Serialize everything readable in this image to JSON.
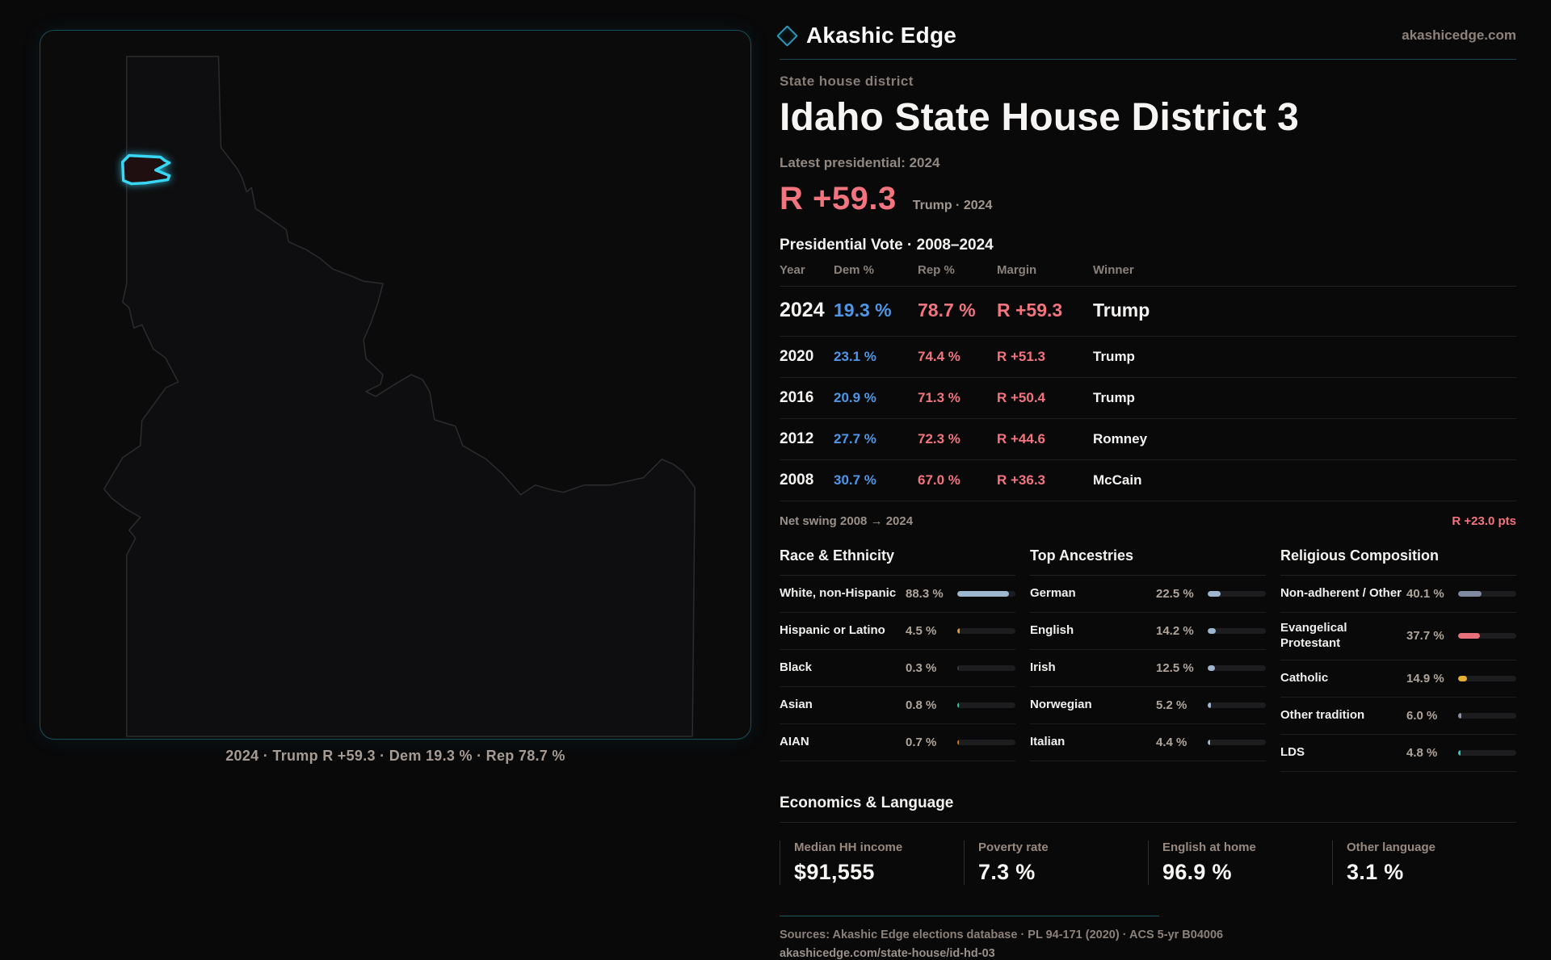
{
  "brand": {
    "name": "Akashic Edge",
    "domain": "akashicedge.com"
  },
  "page": {
    "kicker": "State house district",
    "title": "Idaho State House District 3",
    "latest_label": "Latest presidential: 2024",
    "headline_margin": "R +59.3",
    "headline_sub": "Trump · 2024"
  },
  "map": {
    "state": "Idaho",
    "caption": "2024 · Trump R +59.3 · Dem 19.3 % · Rep 78.7 %",
    "district_color": "#38d7f5"
  },
  "vote_table": {
    "title": "Presidential Vote · 2008–2024",
    "columns": {
      "year": "Year",
      "dem": "Dem %",
      "rep": "Rep %",
      "margin": "Margin",
      "winner": "Winner"
    },
    "rows": [
      {
        "year": "2024",
        "dem": "19.3 %",
        "rep": "78.7 %",
        "margin": "R +59.3",
        "winner": "Trump"
      },
      {
        "year": "2020",
        "dem": "23.1 %",
        "rep": "74.4 %",
        "margin": "R +51.3",
        "winner": "Trump"
      },
      {
        "year": "2016",
        "dem": "20.9 %",
        "rep": "71.3 %",
        "margin": "R +50.4",
        "winner": "Trump"
      },
      {
        "year": "2012",
        "dem": "27.7 %",
        "rep": "72.3 %",
        "margin": "R +44.6",
        "winner": "Romney"
      },
      {
        "year": "2008",
        "dem": "30.7 %",
        "rep": "67.0 %",
        "margin": "R +36.3",
        "winner": "McCain"
      }
    ],
    "net_swing_label": "Net swing 2008 → 2024",
    "net_swing_value": "R +23.0 pts"
  },
  "chart_data": {
    "type": "bar",
    "groups": [
      {
        "title": "Race & Ethnicity",
        "categories": [
          "White, non-Hispanic",
          "Hispanic or Latino",
          "Black",
          "Asian",
          "AIAN"
        ],
        "values": [
          88.3,
          4.5,
          0.3,
          0.8,
          0.7
        ]
      },
      {
        "title": "Top Ancestries",
        "categories": [
          "German",
          "English",
          "Irish",
          "Norwegian",
          "Italian"
        ],
        "values": [
          22.5,
          14.2,
          12.5,
          5.2,
          4.4
        ]
      },
      {
        "title": "Religious Composition",
        "categories": [
          "Non-adherent / Other",
          "Evangelical Protestant",
          "Catholic",
          "Other tradition",
          "LDS"
        ],
        "values": [
          40.1,
          37.7,
          14.9,
          6.0,
          4.8
        ]
      }
    ]
  },
  "demographics": [
    {
      "title": "Race & Ethnicity",
      "rows": [
        {
          "label": "White, non-Hispanic",
          "value": "88.3 %",
          "pct": 88.3,
          "color": "#9fb6cf"
        },
        {
          "label": "Hispanic or Latino",
          "value": "4.5 %",
          "pct": 4.5,
          "color": "#e09a2e"
        },
        {
          "label": "Black",
          "value": "0.3 %",
          "pct": 0.3,
          "color": "#3a3a3e"
        },
        {
          "label": "Asian",
          "value": "0.8 %",
          "pct": 0.8,
          "color": "#2ec9a0"
        },
        {
          "label": "AIAN",
          "value": "0.7 %",
          "pct": 0.7,
          "color": "#c87a20"
        }
      ]
    },
    {
      "title": "Top Ancestries",
      "rows": [
        {
          "label": "German",
          "value": "22.5 %",
          "pct": 22.5,
          "color": "#9fb6cf"
        },
        {
          "label": "English",
          "value": "14.2 %",
          "pct": 14.2,
          "color": "#9fb6cf"
        },
        {
          "label": "Irish",
          "value": "12.5 %",
          "pct": 12.5,
          "color": "#9fb6cf"
        },
        {
          "label": "Norwegian",
          "value": "5.2 %",
          "pct": 5.2,
          "color": "#9fb6cf"
        },
        {
          "label": "Italian",
          "value": "4.4 %",
          "pct": 4.4,
          "color": "#9fb6cf"
        }
      ]
    },
    {
      "title": "Religious Composition",
      "rows": [
        {
          "label": "Non-adherent / Other",
          "value": "40.1 %",
          "pct": 40.1,
          "color": "#7e8aa0"
        },
        {
          "label": "Evangelical Protestant",
          "value": "37.7 %",
          "pct": 37.7,
          "color": "#e7707a"
        },
        {
          "label": "Catholic",
          "value": "14.9 %",
          "pct": 14.9,
          "color": "#e5ae35"
        },
        {
          "label": "Other tradition",
          "value": "6.0 %",
          "pct": 6.0,
          "color": "#8a93a5"
        },
        {
          "label": "LDS",
          "value": "4.8 %",
          "pct": 4.8,
          "color": "#2cc9b8"
        }
      ]
    }
  ],
  "economics": {
    "title": "Economics & Language",
    "stats": [
      {
        "label": "Median HH income",
        "value": "$91,555"
      },
      {
        "label": "Poverty rate",
        "value": "7.3 %"
      },
      {
        "label": "English at home",
        "value": "96.9 %"
      },
      {
        "label": "Other language",
        "value": "3.1 %"
      }
    ]
  },
  "footer": {
    "sources": "Sources: Akashic Edge elections database · PL 94-171 (2020) · ACS 5-yr B04006",
    "permalink": "akashicedge.com/state-house/id-hd-03"
  },
  "colors": {
    "dem_blue": "#4f97e6",
    "rep_red": "#f2747e",
    "accent_teal": "#38d7f5",
    "panel_border": "#175059"
  }
}
